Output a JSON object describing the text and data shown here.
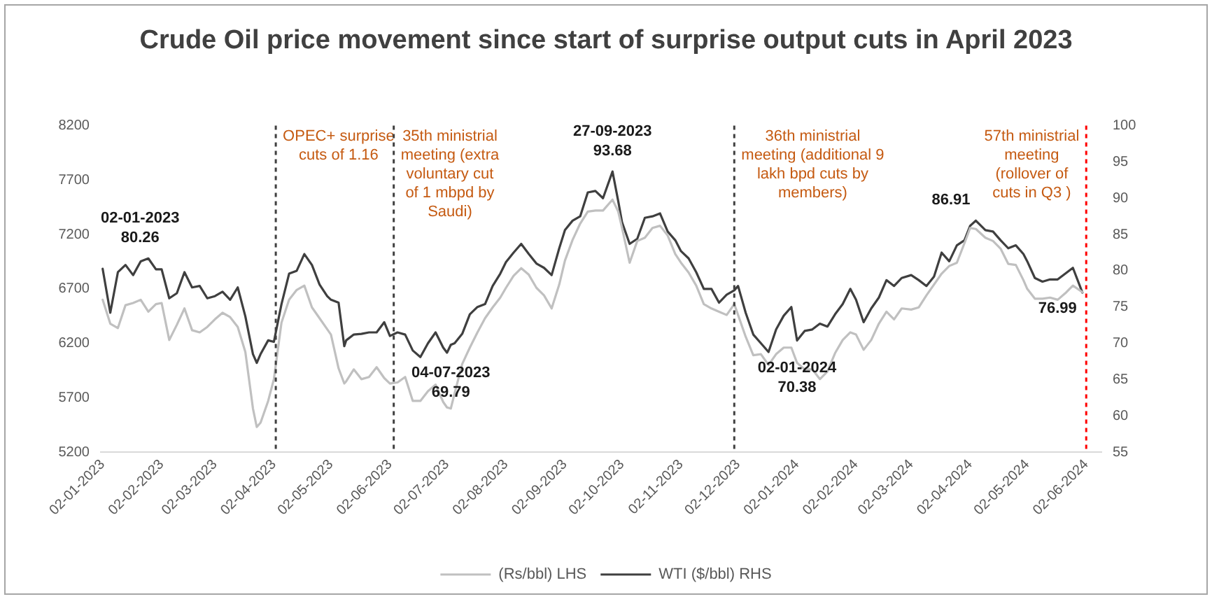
{
  "chart_data": {
    "type": "line",
    "title": "Crude Oil price movement since start of surprise output cuts in April 2023",
    "x": [
      "2023-01-02",
      "2023-01-06",
      "2023-01-10",
      "2023-01-14",
      "2023-01-18",
      "2023-01-22",
      "2023-01-26",
      "2023-01-30",
      "2023-02-02",
      "2023-02-06",
      "2023-02-10",
      "2023-02-14",
      "2023-02-18",
      "2023-02-22",
      "2023-02-26",
      "2023-03-02",
      "2023-03-06",
      "2023-03-10",
      "2023-03-14",
      "2023-03-18",
      "2023-03-22",
      "2023-03-24",
      "2023-03-26",
      "2023-03-30",
      "2023-04-02",
      "2023-04-06",
      "2023-04-10",
      "2023-04-14",
      "2023-04-18",
      "2023-04-22",
      "2023-04-26",
      "2023-04-30",
      "2023-05-02",
      "2023-05-06",
      "2023-05-09",
      "2023-05-10",
      "2023-05-14",
      "2023-05-18",
      "2023-05-22",
      "2023-05-26",
      "2023-05-30",
      "2023-06-02",
      "2023-06-06",
      "2023-06-10",
      "2023-06-14",
      "2023-06-18",
      "2023-06-22",
      "2023-06-26",
      "2023-06-30",
      "2023-07-02",
      "2023-07-04",
      "2023-07-06",
      "2023-07-10",
      "2023-07-14",
      "2023-07-18",
      "2023-07-22",
      "2023-07-26",
      "2023-07-30",
      "2023-08-02",
      "2023-08-06",
      "2023-08-10",
      "2023-08-14",
      "2023-08-18",
      "2023-08-22",
      "2023-08-26",
      "2023-08-30",
      "2023-09-02",
      "2023-09-06",
      "2023-09-10",
      "2023-09-14",
      "2023-09-18",
      "2023-09-22",
      "2023-09-27",
      "2023-09-30",
      "2023-10-02",
      "2023-10-06",
      "2023-10-10",
      "2023-10-14",
      "2023-10-18",
      "2023-10-22",
      "2023-10-26",
      "2023-10-30",
      "2023-11-02",
      "2023-11-06",
      "2023-11-10",
      "2023-11-14",
      "2023-11-18",
      "2023-11-22",
      "2023-11-26",
      "2023-11-30",
      "2023-12-02",
      "2023-12-06",
      "2023-12-10",
      "2023-12-14",
      "2023-12-18",
      "2023-12-22",
      "2023-12-26",
      "2023-12-30",
      "2024-01-02",
      "2024-01-06",
      "2024-01-10",
      "2024-01-14",
      "2024-01-18",
      "2024-01-22",
      "2024-01-26",
      "2024-01-30",
      "2024-02-02",
      "2024-02-06",
      "2024-02-10",
      "2024-02-14",
      "2024-02-18",
      "2024-02-22",
      "2024-02-26",
      "2024-03-02",
      "2024-03-06",
      "2024-03-10",
      "2024-03-14",
      "2024-03-18",
      "2024-03-22",
      "2024-03-26",
      "2024-03-30",
      "2024-04-02",
      "2024-04-05",
      "2024-04-10",
      "2024-04-14",
      "2024-04-18",
      "2024-04-22",
      "2024-04-26",
      "2024-04-30",
      "2024-05-02",
      "2024-05-06",
      "2024-05-10",
      "2024-05-14",
      "2024-05-18",
      "2024-05-22",
      "2024-05-26",
      "2024-05-31"
    ],
    "series": [
      {
        "name": "(Rs/bbl) LHS",
        "color": "#c0c0c0",
        "values": [
          6600,
          6380,
          6340,
          6550,
          6570,
          6600,
          6490,
          6560,
          6570,
          6230,
          6370,
          6520,
          6320,
          6300,
          6350,
          6420,
          6480,
          6440,
          6350,
          6120,
          5600,
          5430,
          5470,
          5670,
          5870,
          6390,
          6600,
          6690,
          6730,
          6530,
          6430,
          6330,
          6280,
          5970,
          5830,
          5850,
          5960,
          5870,
          5890,
          5980,
          5880,
          5830,
          5840,
          5890,
          5670,
          5670,
          5760,
          5820,
          5660,
          5610,
          5600,
          5740,
          6010,
          6160,
          6300,
          6430,
          6530,
          6620,
          6710,
          6820,
          6890,
          6830,
          6710,
          6640,
          6520,
          6740,
          6960,
          7150,
          7300,
          7410,
          7420,
          7420,
          7520,
          7410,
          7260,
          6940,
          7140,
          7170,
          7260,
          7280,
          7190,
          7020,
          6940,
          6850,
          6730,
          6560,
          6520,
          6490,
          6460,
          6560,
          6460,
          6260,
          6090,
          6100,
          6000,
          6100,
          6160,
          6160,
          6020,
          5960,
          5960,
          5870,
          5940,
          6110,
          6230,
          6300,
          6280,
          6140,
          6230,
          6380,
          6490,
          6420,
          6520,
          6510,
          6530,
          6640,
          6740,
          6840,
          6910,
          6940,
          7120,
          7260,
          7250,
          7170,
          7140,
          7070,
          6930,
          6920,
          6780,
          6700,
          6610,
          6610,
          6620,
          6600,
          6660,
          6730,
          6670
        ]
      },
      {
        "name": "WTI ($/bbl) RHS",
        "color": "#3f3f3f",
        "axis": "y2",
        "values": [
          80.26,
          74.2,
          79.8,
          80.8,
          79.4,
          81.3,
          81.7,
          80.2,
          80.2,
          76.2,
          76.9,
          79.8,
          77.7,
          77.9,
          76.2,
          76.5,
          77.1,
          76.0,
          77.7,
          73.7,
          68.5,
          67.3,
          68.5,
          70.4,
          70.2,
          75.4,
          79.6,
          80.0,
          82.3,
          80.8,
          78.1,
          76.5,
          76.0,
          75.6,
          69.6,
          70.4,
          71.2,
          71.3,
          71.5,
          71.5,
          72.9,
          71.0,
          71.5,
          71.2,
          69.0,
          68.1,
          70.0,
          71.5,
          69.4,
          68.7,
          69.79,
          70.0,
          71.3,
          74.0,
          75.0,
          75.4,
          77.9,
          79.6,
          81.2,
          82.5,
          83.7,
          82.3,
          81.0,
          80.4,
          79.4,
          83.1,
          85.6,
          86.9,
          87.5,
          90.8,
          91.0,
          90.0,
          93.68,
          89.6,
          86.7,
          83.7,
          84.4,
          87.3,
          87.5,
          87.9,
          85.4,
          84.2,
          82.7,
          81.7,
          79.8,
          77.5,
          77.5,
          75.6,
          76.7,
          77.3,
          77.9,
          74.2,
          71.2,
          70.0,
          68.8,
          71.9,
          73.8,
          75.0,
          70.38,
          71.7,
          71.9,
          72.7,
          72.3,
          74.0,
          75.4,
          77.5,
          76.0,
          72.9,
          74.8,
          76.3,
          78.7,
          77.9,
          79.0,
          79.4,
          78.7,
          77.9,
          79.2,
          82.5,
          81.3,
          83.5,
          84.2,
          86.2,
          86.91,
          85.6,
          85.4,
          84.2,
          83.1,
          83.5,
          82.3,
          81.3,
          79.0,
          78.5,
          78.8,
          78.8,
          79.6,
          80.4,
          76.99
        ],
        "value_labels": [
          "02-01-2023\n80.26",
          null,
          null,
          null,
          null,
          null,
          null,
          null,
          null,
          null,
          null,
          null,
          null,
          null,
          null,
          null,
          null,
          null,
          null,
          null,
          null,
          null,
          null,
          null,
          null,
          null,
          null,
          null,
          null,
          null,
          null,
          null,
          null,
          null,
          null,
          null,
          null,
          null,
          null,
          null,
          null,
          null,
          null,
          null,
          null,
          null,
          null,
          null,
          null,
          null,
          "04-07-2023\n69.79",
          null,
          null,
          null,
          null,
          null,
          null,
          null,
          null,
          null,
          null,
          null,
          null,
          null,
          null,
          null,
          null,
          null,
          null,
          null,
          null,
          null,
          "27-09-2023\n93.68",
          null,
          null,
          null,
          null,
          null,
          null,
          null,
          null,
          null,
          null,
          null,
          null,
          null,
          null,
          null,
          null,
          null,
          null,
          null,
          null,
          null,
          null,
          null,
          null,
          null,
          "02-01-2024\n70.38",
          null,
          null,
          null,
          null,
          null,
          null,
          null,
          null,
          null,
          null,
          null,
          null,
          null,
          null,
          null,
          null,
          null,
          null,
          null,
          null,
          null,
          null,
          null,
          "86.91",
          null,
          null,
          null,
          null,
          null,
          null,
          null,
          null,
          null,
          null,
          null,
          null,
          null,
          "76.99"
        ]
      }
    ],
    "xlim": [
      "2023-01-01",
      "2024-06-10"
    ],
    "xticks": [
      {
        "value": "2023-01-02",
        "label": "02-01-2023"
      },
      {
        "value": "2023-02-02",
        "label": "02-02-2023"
      },
      {
        "value": "2023-03-02",
        "label": "02-03-2023"
      },
      {
        "value": "2023-04-02",
        "label": "02-04-2023"
      },
      {
        "value": "2023-05-02",
        "label": "02-05-2023"
      },
      {
        "value": "2023-06-02",
        "label": "02-06-2023"
      },
      {
        "value": "2023-07-02",
        "label": "02-07-2023"
      },
      {
        "value": "2023-08-02",
        "label": "02-08-2023"
      },
      {
        "value": "2023-09-02",
        "label": "02-09-2023"
      },
      {
        "value": "2023-10-02",
        "label": "02-10-2023"
      },
      {
        "value": "2023-11-02",
        "label": "02-11-2023"
      },
      {
        "value": "2023-12-02",
        "label": "02-12-2023"
      },
      {
        "value": "2024-01-02",
        "label": "02-01-2024"
      },
      {
        "value": "2024-02-02",
        "label": "02-02-2024"
      },
      {
        "value": "2024-03-02",
        "label": "02-03-2024"
      },
      {
        "value": "2024-04-02",
        "label": "02-04-2024"
      },
      {
        "value": "2024-05-02",
        "label": "02-05-2024"
      },
      {
        "value": "2024-06-02",
        "label": "02-06-2024"
      }
    ],
    "ylim": [
      5200,
      8200
    ],
    "yticks": [
      5200,
      5700,
      6200,
      6700,
      7200,
      7700,
      8200
    ],
    "y2lim": [
      55,
      100
    ],
    "y2ticks": [
      55,
      60,
      65,
      70,
      75,
      80,
      85,
      90,
      95,
      100
    ],
    "ref_lines": [
      {
        "axis": "x",
        "value": "2023-04-03",
        "label": "OPEC+ surprise\ncuts of 1.16",
        "color": "#404040",
        "line_style": "dashed"
      },
      {
        "axis": "x",
        "value": "2023-06-04",
        "label": "35th ministrial\nmeeting (extra\nvoluntary cut\nof 1 mbpd by\nSaudi)",
        "color": "#404040",
        "line_style": "dashed"
      },
      {
        "axis": "x",
        "value": "2023-11-30",
        "label": "36th ministrial\nmeeting (additional 9\nlakh bpd cuts by\nmembers)",
        "color": "#404040",
        "line_style": "dashed"
      },
      {
        "axis": "x",
        "value": "2024-06-02",
        "label": "57th ministrial\nmeeting\n(rollover of\ncuts in Q3 )",
        "color": "#ff0000",
        "line_style": "dashed"
      }
    ],
    "legend": "bottom"
  }
}
